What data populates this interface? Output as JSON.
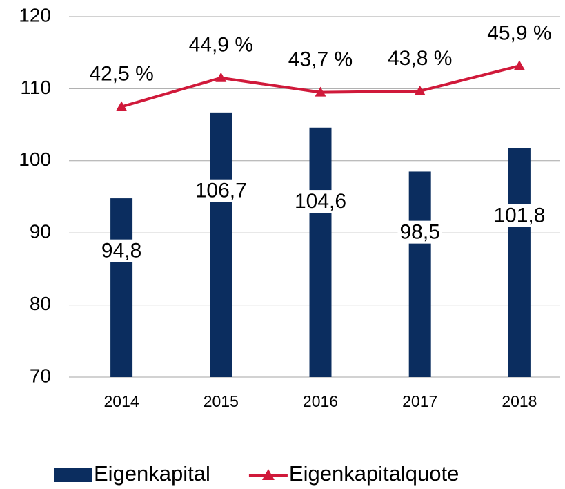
{
  "chart_data": {
    "type": "bar-line",
    "categories": [
      "2014",
      "2015",
      "2016",
      "2017",
      "2018"
    ],
    "series": [
      {
        "name": "Eigenkapital",
        "type": "bar",
        "color": "#0b2d5f",
        "values": [
          94.8,
          106.7,
          104.6,
          98.5,
          101.8
        ],
        "value_labels": [
          "94,8",
          "106,7",
          "104,6",
          "98,5",
          "101,8"
        ]
      },
      {
        "name": "Eigenkapitalquote",
        "type": "line",
        "axis": "y2",
        "color": "#d0193a",
        "marker": "triangle",
        "values": [
          42.5,
          44.9,
          43.7,
          43.8,
          45.9
        ],
        "value_labels": [
          "42,5 %",
          "44,9 %",
          "43,7 %",
          "43,8 %",
          "45,9 %"
        ]
      }
    ],
    "ylim": [
      70,
      120
    ],
    "yticks": [
      70,
      80,
      90,
      100,
      110,
      120
    ],
    "y2lim": [
      20,
      50
    ],
    "grid": true,
    "legend": "bottom"
  }
}
